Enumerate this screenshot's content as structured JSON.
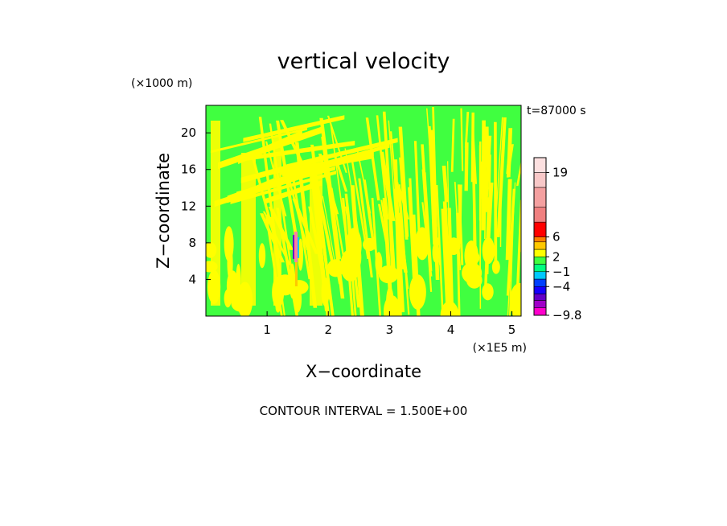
{
  "chart_data": {
    "type": "heatmap",
    "title": "vertical velocity",
    "xlabel": "X−coordinate",
    "ylabel": "Z−coordinate",
    "x_unit": "(×1E5 m)",
    "y_unit": "(×1000 m)",
    "xlim": [
      0,
      5.15
    ],
    "ylim": [
      0,
      23
    ],
    "x_ticks": [
      1,
      2,
      3,
      4,
      5
    ],
    "y_ticks": [
      4,
      8,
      12,
      16,
      20
    ],
    "time_label": "t=87000 s",
    "contour_interval": "CONTOUR INTERVAL = 1.500E+00",
    "background_field": "mixed yellow/green bands (values near −1 to 2)",
    "colorbar": {
      "levels": [
        -9.8,
        -8.3,
        -6.8,
        -5.5,
        -4,
        -2.5,
        -1,
        0.5,
        2,
        3.5,
        5,
        6,
        9,
        12,
        16,
        19,
        22
      ],
      "colors": [
        "#ff00cc",
        "#a000c8",
        "#6400c8",
        "#1400ff",
        "#0040ff",
        "#00c8ff",
        "#00ff80",
        "#40ff40",
        "#ffff00",
        "#ffc800",
        "#ff8000",
        "#ff0000",
        "#f08080",
        "#f4a0a0",
        "#f8c8c8",
        "#fce0e0"
      ],
      "tick_labels": [
        {
          "label": "19",
          "value": 19
        },
        {
          "label": "6",
          "value": 6
        },
        {
          "label": "2",
          "value": 2
        },
        {
          "label": "−1",
          "value": -1
        },
        {
          "label": "−4",
          "value": -4
        },
        {
          "label": "−9.8",
          "value": -9.8
        }
      ]
    }
  }
}
